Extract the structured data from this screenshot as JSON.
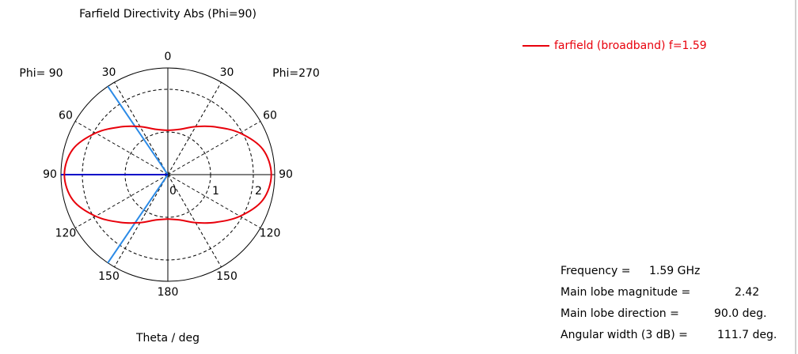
{
  "chart_data": {
    "type": "polar",
    "title": "Farfield Directivity Abs (Phi=90)",
    "axis_label": "Theta / deg",
    "side_labels": [
      "Phi= 90",
      "Phi=270"
    ],
    "x": [
      -180,
      -165,
      -150,
      -135,
      -120,
      -105,
      -90,
      -75,
      -60,
      -45,
      -30,
      -15,
      0,
      15,
      30,
      45,
      60,
      75,
      90,
      105,
      120,
      135,
      150,
      165,
      180
    ],
    "series": [
      {
        "name": "farfield (broadband) f=1.59",
        "color": "#e8000b",
        "values": [
          1.04,
          1.1,
          1.3,
          1.58,
          1.95,
          2.3,
          2.42,
          2.3,
          1.95,
          1.58,
          1.3,
          1.1,
          1.04,
          1.1,
          1.3,
          1.58,
          1.95,
          2.3,
          2.42,
          2.3,
          1.95,
          1.58,
          1.3,
          1.1,
          1.04
        ]
      }
    ],
    "rlim": [
      0,
      2.5
    ],
    "rticks": [
      0,
      1,
      2
    ],
    "angle_ticks": [
      0,
      {
        "value": 30,
        "label": "30"
      },
      {
        "value": 60,
        "label": "60"
      },
      {
        "value": 90,
        "label": "90"
      },
      {
        "value": 120,
        "label": "120"
      },
      {
        "value": 150,
        "label": "150"
      },
      180,
      {
        "value": -150,
        "label": "150"
      },
      {
        "value": -120,
        "label": "120"
      },
      {
        "value": -90,
        "label": "90"
      },
      {
        "value": -60,
        "label": "60"
      },
      {
        "value": -30,
        "label": "30"
      }
    ],
    "main_lobe_angle": -90,
    "beam_edges": [
      -34.15,
      -145.85
    ],
    "grid": true,
    "legend": "top-right",
    "info": [
      {
        "label": "Frequency =",
        "value": "1.59 GHz"
      },
      {
        "label": "Main lobe magnitude =",
        "value": "2.42"
      },
      {
        "label": "Main lobe direction =",
        "value": "90.0 deg."
      },
      {
        "label": "Angular width (3 dB) =",
        "value": "111.7 deg."
      }
    ]
  }
}
